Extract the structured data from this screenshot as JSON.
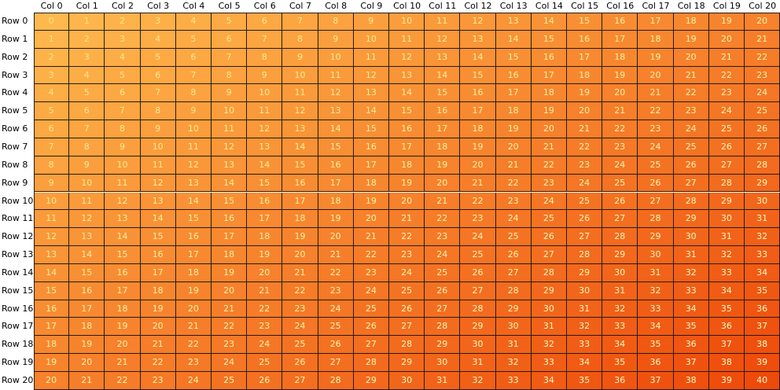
{
  "grid": {
    "column_headers": [
      "Col 0",
      "Col 1",
      "Col 2",
      "Col 3",
      "Col 4",
      "Col 5",
      "Col 6",
      "Col 7",
      "Col 8",
      "Col 9",
      "Col 10",
      "Col 11",
      "Col 12",
      "Col 13",
      "Col 14",
      "Col 15",
      "Col 16",
      "Col 17",
      "Col 18",
      "Col 19",
      "Col 20"
    ],
    "row_headers": [
      "Row 0",
      "Row 1",
      "Row 2",
      "Row 3",
      "Row 4",
      "Row 5",
      "Row 6",
      "Row 7",
      "Row 8",
      "Row 9",
      "Row 10",
      "Row 11",
      "Row 12",
      "Row 13",
      "Row 14",
      "Row 15",
      "Row 16",
      "Row 17",
      "Row 18",
      "Row 19",
      "Row 20"
    ],
    "cells": [
      [
        "0",
        "1",
        "2",
        "3",
        "4",
        "5",
        "6",
        "7",
        "8",
        "9",
        "10",
        "11",
        "12",
        "13",
        "14",
        "15",
        "16",
        "17",
        "18",
        "19",
        "20"
      ],
      [
        "1",
        "2",
        "3",
        "4",
        "5",
        "6",
        "7",
        "8",
        "9",
        "10",
        "11",
        "12",
        "13",
        "14",
        "15",
        "16",
        "17",
        "18",
        "19",
        "20",
        "21"
      ],
      [
        "2",
        "3",
        "4",
        "5",
        "6",
        "7",
        "8",
        "9",
        "10",
        "11",
        "12",
        "13",
        "14",
        "15",
        "16",
        "17",
        "18",
        "19",
        "20",
        "21",
        "22"
      ],
      [
        "3",
        "4",
        "5",
        "6",
        "7",
        "8",
        "9",
        "10",
        "11",
        "12",
        "13",
        "14",
        "15",
        "16",
        "17",
        "18",
        "19",
        "20",
        "21",
        "22",
        "23"
      ],
      [
        "4",
        "5",
        "6",
        "7",
        "8",
        "9",
        "10",
        "11",
        "12",
        "13",
        "14",
        "15",
        "16",
        "17",
        "18",
        "19",
        "20",
        "21",
        "22",
        "23",
        "24"
      ],
      [
        "5",
        "6",
        "7",
        "8",
        "9",
        "10",
        "11",
        "12",
        "13",
        "14",
        "15",
        "16",
        "17",
        "18",
        "19",
        "20",
        "21",
        "22",
        "23",
        "24",
        "25"
      ],
      [
        "6",
        "7",
        "8",
        "9",
        "10",
        "11",
        "12",
        "13",
        "14",
        "15",
        "16",
        "17",
        "18",
        "19",
        "20",
        "21",
        "22",
        "23",
        "24",
        "25",
        "26"
      ],
      [
        "7",
        "8",
        "9",
        "10",
        "11",
        "12",
        "13",
        "14",
        "15",
        "16",
        "17",
        "18",
        "19",
        "20",
        "21",
        "22",
        "23",
        "24",
        "25",
        "26",
        "27"
      ],
      [
        "8",
        "9",
        "10",
        "11",
        "12",
        "13",
        "14",
        "15",
        "16",
        "17",
        "18",
        "19",
        "20",
        "21",
        "22",
        "23",
        "24",
        "25",
        "26",
        "27",
        "28"
      ],
      [
        "9",
        "10",
        "11",
        "12",
        "13",
        "14",
        "15",
        "16",
        "17",
        "18",
        "19",
        "20",
        "21",
        "22",
        "23",
        "24",
        "25",
        "26",
        "27",
        "28",
        "29"
      ],
      [
        "10",
        "11",
        "12",
        "13",
        "14",
        "15",
        "16",
        "17",
        "18",
        "19",
        "20",
        "21",
        "22",
        "23",
        "24",
        "25",
        "26",
        "27",
        "28",
        "29",
        "30"
      ],
      [
        "11",
        "12",
        "13",
        "14",
        "15",
        "16",
        "17",
        "18",
        "19",
        "20",
        "21",
        "22",
        "23",
        "24",
        "25",
        "26",
        "27",
        "28",
        "29",
        "30",
        "31"
      ],
      [
        "12",
        "13",
        "14",
        "15",
        "16",
        "17",
        "18",
        "19",
        "20",
        "21",
        "22",
        "23",
        "24",
        "25",
        "26",
        "27",
        "28",
        "29",
        "30",
        "31",
        "32"
      ],
      [
        "13",
        "14",
        "15",
        "16",
        "17",
        "18",
        "19",
        "20",
        "21",
        "22",
        "23",
        "24",
        "25",
        "26",
        "27",
        "28",
        "29",
        "30",
        "31",
        "32",
        "33"
      ],
      [
        "14",
        "15",
        "16",
        "17",
        "18",
        "19",
        "20",
        "21",
        "22",
        "23",
        "24",
        "25",
        "26",
        "27",
        "28",
        "29",
        "30",
        "31",
        "32",
        "33",
        "34"
      ],
      [
        "15",
        "16",
        "17",
        "18",
        "19",
        "20",
        "21",
        "22",
        "23",
        "24",
        "25",
        "26",
        "27",
        "28",
        "29",
        "30",
        "31",
        "32",
        "33",
        "34",
        "35"
      ],
      [
        "16",
        "17",
        "18",
        "19",
        "20",
        "21",
        "22",
        "23",
        "24",
        "25",
        "26",
        "27",
        "28",
        "29",
        "30",
        "31",
        "32",
        "33",
        "34",
        "35",
        "36"
      ],
      [
        "17",
        "18",
        "19",
        "20",
        "21",
        "22",
        "23",
        "24",
        "25",
        "26",
        "27",
        "28",
        "29",
        "30",
        "31",
        "32",
        "33",
        "34",
        "35",
        "36",
        "37"
      ],
      [
        "18",
        "19",
        "20",
        "21",
        "22",
        "23",
        "24",
        "25",
        "26",
        "27",
        "28",
        "29",
        "30",
        "31",
        "32",
        "33",
        "34",
        "35",
        "36",
        "37",
        "38"
      ],
      [
        "19",
        "20",
        "21",
        "22",
        "23",
        "24",
        "25",
        "26",
        "27",
        "28",
        "29",
        "30",
        "31",
        "32",
        "33",
        "34",
        "35",
        "36",
        "37",
        "38",
        "39"
      ],
      [
        "20",
        "21",
        "22",
        "23",
        "24",
        "25",
        "26",
        "27",
        "28",
        "29",
        "30",
        "31",
        "32",
        "33",
        "34",
        "35",
        "36",
        "37",
        "38",
        "39",
        "40"
      ]
    ]
  },
  "colors": {
    "low_background": "#ffb84d",
    "high_background": "#ee4a0a",
    "low_text": "#ffe680",
    "high_text": "#ffffcc",
    "grid_line": "#2a1a10",
    "header_text": "#000000"
  }
}
